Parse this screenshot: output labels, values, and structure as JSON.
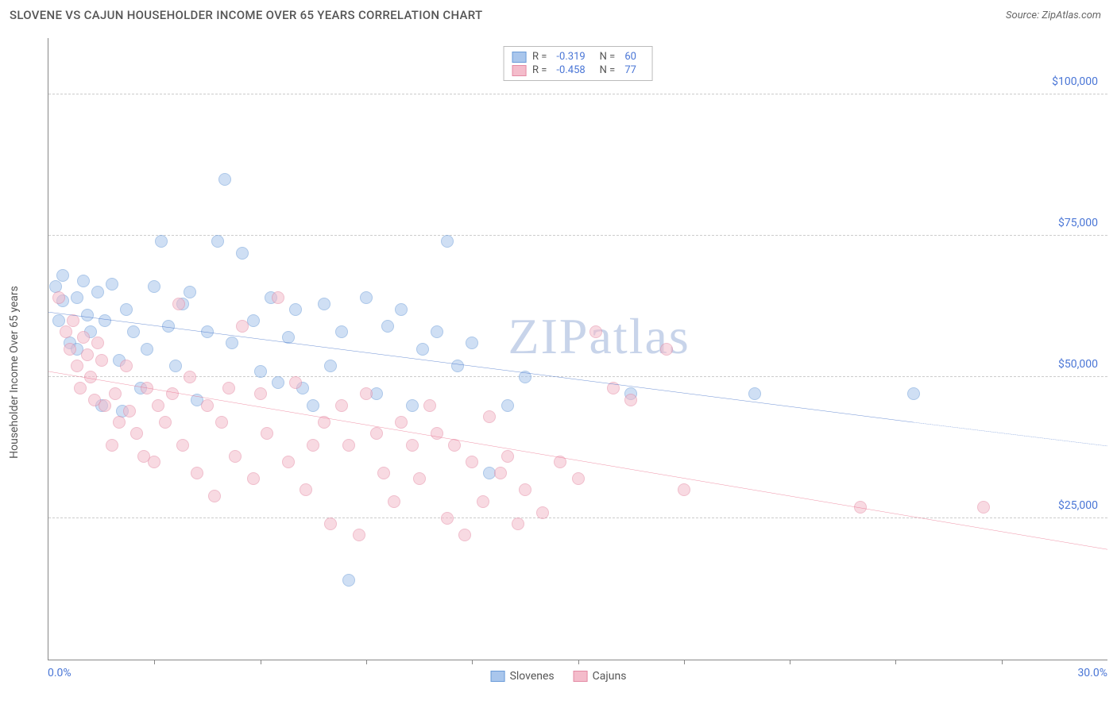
{
  "header": {
    "title": "SLOVENE VS CAJUN HOUSEHOLDER INCOME OVER 65 YEARS CORRELATION CHART",
    "source": "Source: ZipAtlas.com"
  },
  "chart": {
    "type": "scatter",
    "y_axis_label": "Householder Income Over 65 years",
    "x_axis": {
      "min": 0,
      "max": 30,
      "label_min": "0.0%",
      "label_max": "30.0%",
      "tick_step": 3
    },
    "y_axis": {
      "min": 0,
      "max": 110000,
      "ticks": [
        {
          "value": 25000,
          "label": "$25,000"
        },
        {
          "value": 50000,
          "label": "$50,000"
        },
        {
          "value": 75000,
          "label": "$75,000"
        },
        {
          "value": 100000,
          "label": "$100,000"
        }
      ]
    },
    "watermark": "ZIPatlas",
    "background_color": "#ffffff",
    "grid_color": "#cccccc",
    "point_radius": 8,
    "point_opacity": 0.55,
    "series": [
      {
        "key": "slovenes",
        "name": "Slovenes",
        "fill_color": "#a9c6ec",
        "stroke_color": "#6a9bd8",
        "line_color": "#2b5fc1",
        "stats": {
          "R": "-0.319",
          "N": "60"
        },
        "regression": {
          "x1": 0,
          "y1": 61500,
          "x2_solid": 24.5,
          "y2_solid": 42000,
          "x2_dash": 30,
          "y2_dash": 37800
        },
        "points": [
          [
            0.2,
            66000
          ],
          [
            0.3,
            60000
          ],
          [
            0.4,
            63500
          ],
          [
            0.4,
            68000
          ],
          [
            0.6,
            56000
          ],
          [
            0.8,
            64000
          ],
          [
            0.8,
            55000
          ],
          [
            1.0,
            67000
          ],
          [
            1.1,
            61000
          ],
          [
            1.2,
            58000
          ],
          [
            1.4,
            65000
          ],
          [
            1.5,
            45000
          ],
          [
            1.6,
            60000
          ],
          [
            1.8,
            66500
          ],
          [
            2.0,
            53000
          ],
          [
            2.1,
            44000
          ],
          [
            2.2,
            62000
          ],
          [
            2.4,
            58000
          ],
          [
            2.6,
            48000
          ],
          [
            2.8,
            55000
          ],
          [
            3.0,
            66000
          ],
          [
            3.2,
            74000
          ],
          [
            3.4,
            59000
          ],
          [
            3.6,
            52000
          ],
          [
            3.8,
            63000
          ],
          [
            4.0,
            65000
          ],
          [
            4.2,
            46000
          ],
          [
            4.5,
            58000
          ],
          [
            4.8,
            74000
          ],
          [
            5.0,
            85000
          ],
          [
            5.2,
            56000
          ],
          [
            5.5,
            72000
          ],
          [
            5.8,
            60000
          ],
          [
            6.0,
            51000
          ],
          [
            6.3,
            64000
          ],
          [
            6.5,
            49000
          ],
          [
            6.8,
            57000
          ],
          [
            7.0,
            62000
          ],
          [
            7.2,
            48000
          ],
          [
            7.5,
            45000
          ],
          [
            7.8,
            63000
          ],
          [
            8.0,
            52000
          ],
          [
            8.3,
            58000
          ],
          [
            8.5,
            14000
          ],
          [
            9.0,
            64000
          ],
          [
            9.3,
            47000
          ],
          [
            9.6,
            59000
          ],
          [
            10.0,
            62000
          ],
          [
            10.3,
            45000
          ],
          [
            10.6,
            55000
          ],
          [
            11.0,
            58000
          ],
          [
            11.3,
            74000
          ],
          [
            11.6,
            52000
          ],
          [
            12.0,
            56000
          ],
          [
            12.5,
            33000
          ],
          [
            13.0,
            45000
          ],
          [
            13.5,
            50000
          ],
          [
            16.5,
            47000
          ],
          [
            20.0,
            47000
          ],
          [
            24.5,
            47000
          ]
        ]
      },
      {
        "key": "cajuns",
        "name": "Cajuns",
        "fill_color": "#f4bccb",
        "stroke_color": "#e48aa4",
        "line_color": "#e8607f",
        "stats": {
          "R": "-0.458",
          "N": "77"
        },
        "regression": {
          "x1": 0,
          "y1": 51000,
          "x2_solid": 30,
          "y2_solid": 19500,
          "x2_dash": 30,
          "y2_dash": 19500
        },
        "points": [
          [
            0.3,
            64000
          ],
          [
            0.5,
            58000
          ],
          [
            0.6,
            55000
          ],
          [
            0.7,
            60000
          ],
          [
            0.8,
            52000
          ],
          [
            0.9,
            48000
          ],
          [
            1.0,
            57000
          ],
          [
            1.1,
            54000
          ],
          [
            1.2,
            50000
          ],
          [
            1.3,
            46000
          ],
          [
            1.4,
            56000
          ],
          [
            1.5,
            53000
          ],
          [
            1.6,
            45000
          ],
          [
            1.8,
            38000
          ],
          [
            1.9,
            47000
          ],
          [
            2.0,
            42000
          ],
          [
            2.2,
            52000
          ],
          [
            2.3,
            44000
          ],
          [
            2.5,
            40000
          ],
          [
            2.7,
            36000
          ],
          [
            2.8,
            48000
          ],
          [
            3.0,
            35000
          ],
          [
            3.1,
            45000
          ],
          [
            3.3,
            42000
          ],
          [
            3.5,
            47000
          ],
          [
            3.7,
            63000
          ],
          [
            3.8,
            38000
          ],
          [
            4.0,
            50000
          ],
          [
            4.2,
            33000
          ],
          [
            4.5,
            45000
          ],
          [
            4.7,
            29000
          ],
          [
            4.9,
            42000
          ],
          [
            5.1,
            48000
          ],
          [
            5.3,
            36000
          ],
          [
            5.5,
            59000
          ],
          [
            5.8,
            32000
          ],
          [
            6.0,
            47000
          ],
          [
            6.2,
            40000
          ],
          [
            6.5,
            64000
          ],
          [
            6.8,
            35000
          ],
          [
            7.0,
            49000
          ],
          [
            7.3,
            30000
          ],
          [
            7.5,
            38000
          ],
          [
            7.8,
            42000
          ],
          [
            8.0,
            24000
          ],
          [
            8.3,
            45000
          ],
          [
            8.5,
            38000
          ],
          [
            8.8,
            22000
          ],
          [
            9.0,
            47000
          ],
          [
            9.3,
            40000
          ],
          [
            9.5,
            33000
          ],
          [
            9.8,
            28000
          ],
          [
            10.0,
            42000
          ],
          [
            10.3,
            38000
          ],
          [
            10.5,
            32000
          ],
          [
            10.8,
            45000
          ],
          [
            11.0,
            40000
          ],
          [
            11.3,
            25000
          ],
          [
            11.5,
            38000
          ],
          [
            11.8,
            22000
          ],
          [
            12.0,
            35000
          ],
          [
            12.3,
            28000
          ],
          [
            12.5,
            43000
          ],
          [
            12.8,
            33000
          ],
          [
            13.0,
            36000
          ],
          [
            13.3,
            24000
          ],
          [
            13.5,
            30000
          ],
          [
            14.0,
            26000
          ],
          [
            14.5,
            35000
          ],
          [
            15.0,
            32000
          ],
          [
            15.5,
            58000
          ],
          [
            16.0,
            48000
          ],
          [
            16.5,
            46000
          ],
          [
            17.5,
            55000
          ],
          [
            18.0,
            30000
          ],
          [
            23.0,
            27000
          ],
          [
            26.5,
            27000
          ]
        ]
      }
    ]
  }
}
